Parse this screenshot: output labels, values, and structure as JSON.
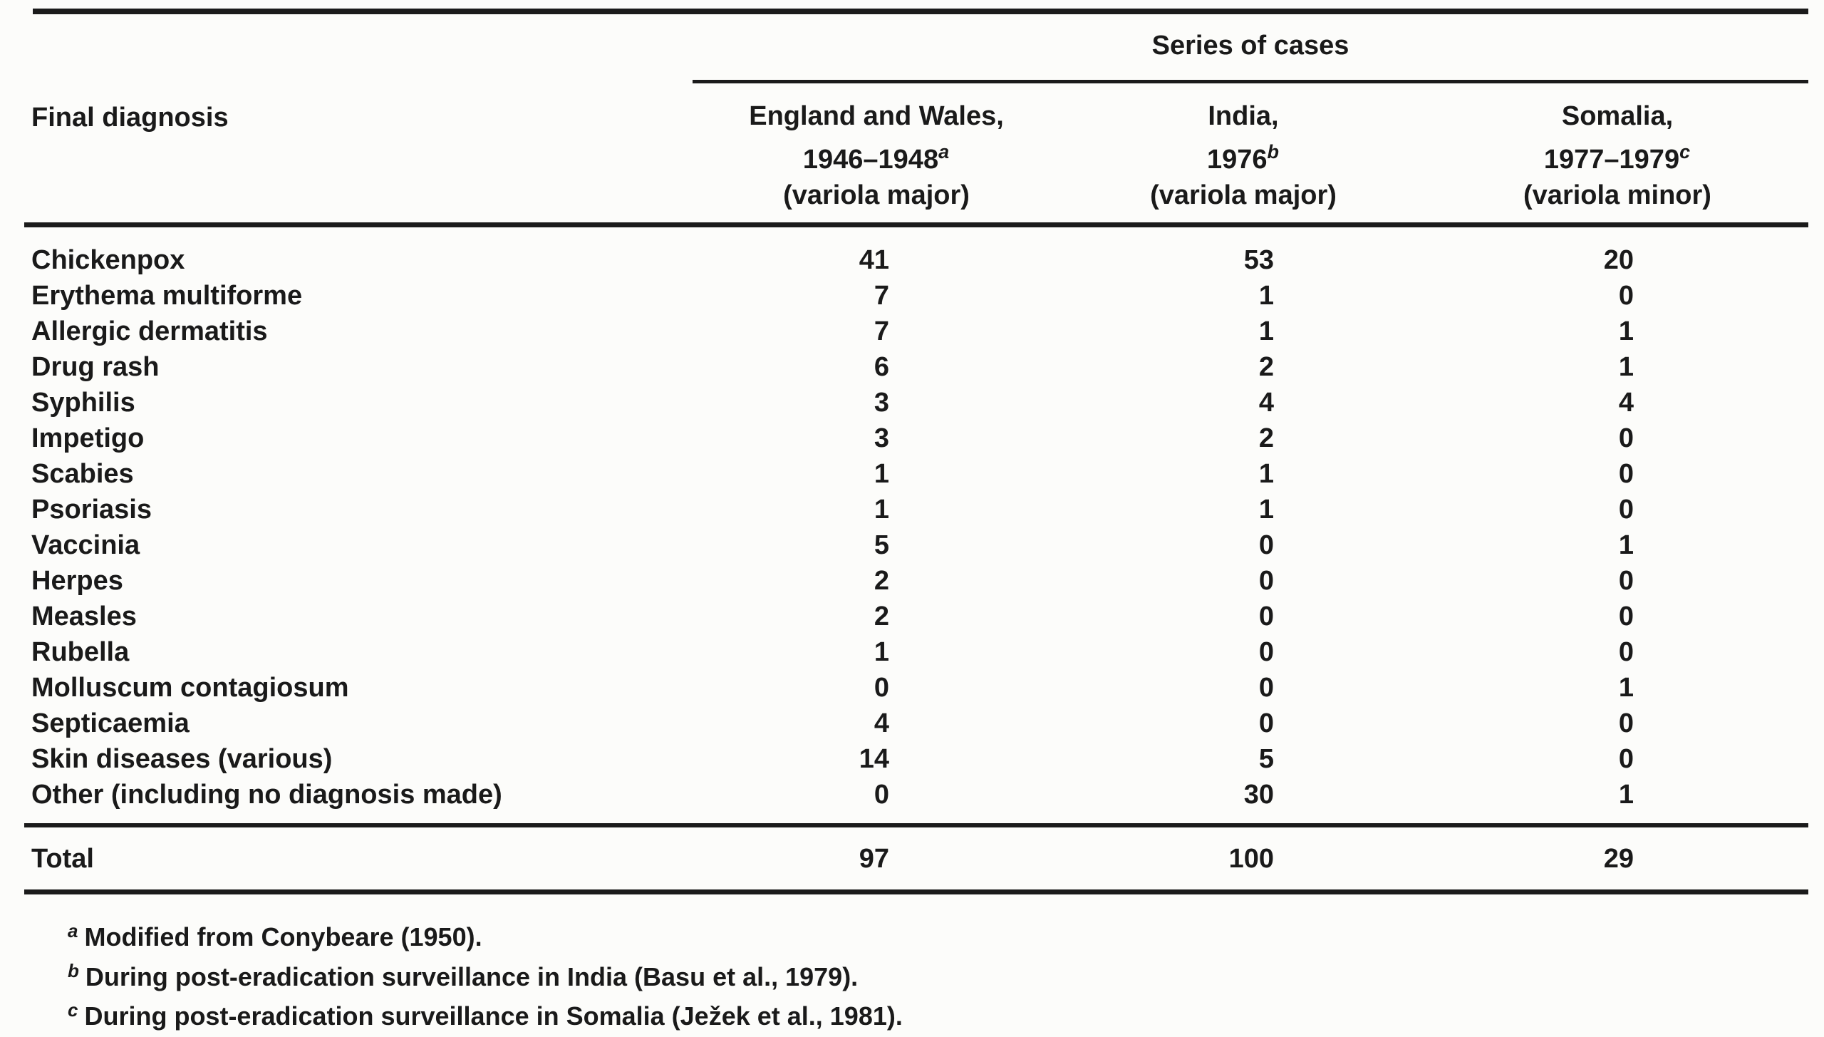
{
  "table": {
    "spanner": "Series of cases",
    "row_header": "Final diagnosis",
    "columns": [
      {
        "region": "England and Wales,",
        "years": "1946–1948",
        "note": "a",
        "variola": "(variola major)"
      },
      {
        "region": "India,",
        "years": "1976",
        "note": "b",
        "variola": "(variola major)"
      },
      {
        "region": "Somalia,",
        "years": "1977–1979",
        "note": "c",
        "variola": "(variola minor)"
      }
    ],
    "rows": [
      {
        "label": "Chickenpox",
        "values": [
          "41",
          "53",
          "20"
        ]
      },
      {
        "label": "Erythema multiforme",
        "values": [
          "7",
          "1",
          "0"
        ]
      },
      {
        "label": "Allergic dermatitis",
        "values": [
          "7",
          "1",
          "1"
        ]
      },
      {
        "label": "Drug rash",
        "values": [
          "6",
          "2",
          "1"
        ]
      },
      {
        "label": "Syphilis",
        "values": [
          "3",
          "4",
          "4"
        ]
      },
      {
        "label": "Impetigo",
        "values": [
          "3",
          "2",
          "0"
        ]
      },
      {
        "label": "Scabies",
        "values": [
          "1",
          "1",
          "0"
        ]
      },
      {
        "label": "Psoriasis",
        "values": [
          "1",
          "1",
          "0"
        ]
      },
      {
        "label": "Vaccinia",
        "values": [
          "5",
          "0",
          "1"
        ]
      },
      {
        "label": "Herpes",
        "values": [
          "2",
          "0",
          "0"
        ]
      },
      {
        "label": "Measles",
        "values": [
          "2",
          "0",
          "0"
        ]
      },
      {
        "label": "Rubella",
        "values": [
          "1",
          "0",
          "0"
        ]
      },
      {
        "label": "Molluscum contagiosum",
        "values": [
          "0",
          "0",
          "1"
        ]
      },
      {
        "label": "Septicaemia",
        "values": [
          "4",
          "0",
          "0"
        ]
      },
      {
        "label": "Skin diseases (various)",
        "values": [
          "14",
          "5",
          "0"
        ]
      },
      {
        "label": "Other (including no diagnosis made)",
        "values": [
          "0",
          "30",
          "1"
        ]
      }
    ],
    "total": {
      "label": "Total",
      "values": [
        "97",
        "100",
        "29"
      ]
    }
  },
  "footnotes": [
    {
      "marker": "a",
      "text": "Modified from Conybeare (1950)."
    },
    {
      "marker": "b",
      "text": "During post-eradication surveillance in India (Basu et al., 1979)."
    },
    {
      "marker": "c",
      "text": "During post-eradication surveillance in Somalia (Ježek et al., 1981)."
    }
  ]
}
